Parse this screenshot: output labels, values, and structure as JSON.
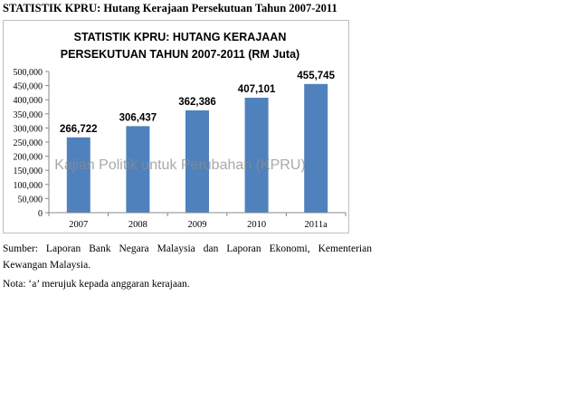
{
  "heading": "STATISTIK KPRU: Hutang Kerajaan Persekutuan Tahun 2007-2011",
  "chart_data": {
    "type": "bar",
    "title_line1": "STATISTIK KPRU: HUTANG KERAJAAN",
    "title_line2": "PERSEKUTUAN TAHUN 2007-2011 (RM Juta)",
    "categories": [
      "2007",
      "2008",
      "2009",
      "2010",
      "2011a"
    ],
    "values": [
      266722,
      306437,
      362386,
      407101,
      455745
    ],
    "data_labels": [
      "266,722",
      "306,437",
      "362,386",
      "407,101",
      "455,745"
    ],
    "yticks": [
      0,
      50000,
      100000,
      150000,
      200000,
      250000,
      300000,
      350000,
      400000,
      450000,
      500000
    ],
    "ytick_labels": [
      "0",
      "50,000",
      "100,000",
      "150,000",
      "200,000",
      "250,000",
      "300,000",
      "350,000",
      "400,000",
      "450,000",
      "500,000"
    ],
    "ylim": [
      0,
      500000
    ],
    "bar_color": "#4f81bd",
    "grid": false,
    "legend": "none",
    "watermark": "Kajian Politik untuk Perubahan (KPRU)"
  },
  "source_note": "Sumber: Laporan Bank Negara Malaysia dan Laporan Ekonomi, Kementerian Kewangan Malaysia.",
  "nota": "Nota: ‘a’ merujuk kepada anggaran kerajaan."
}
